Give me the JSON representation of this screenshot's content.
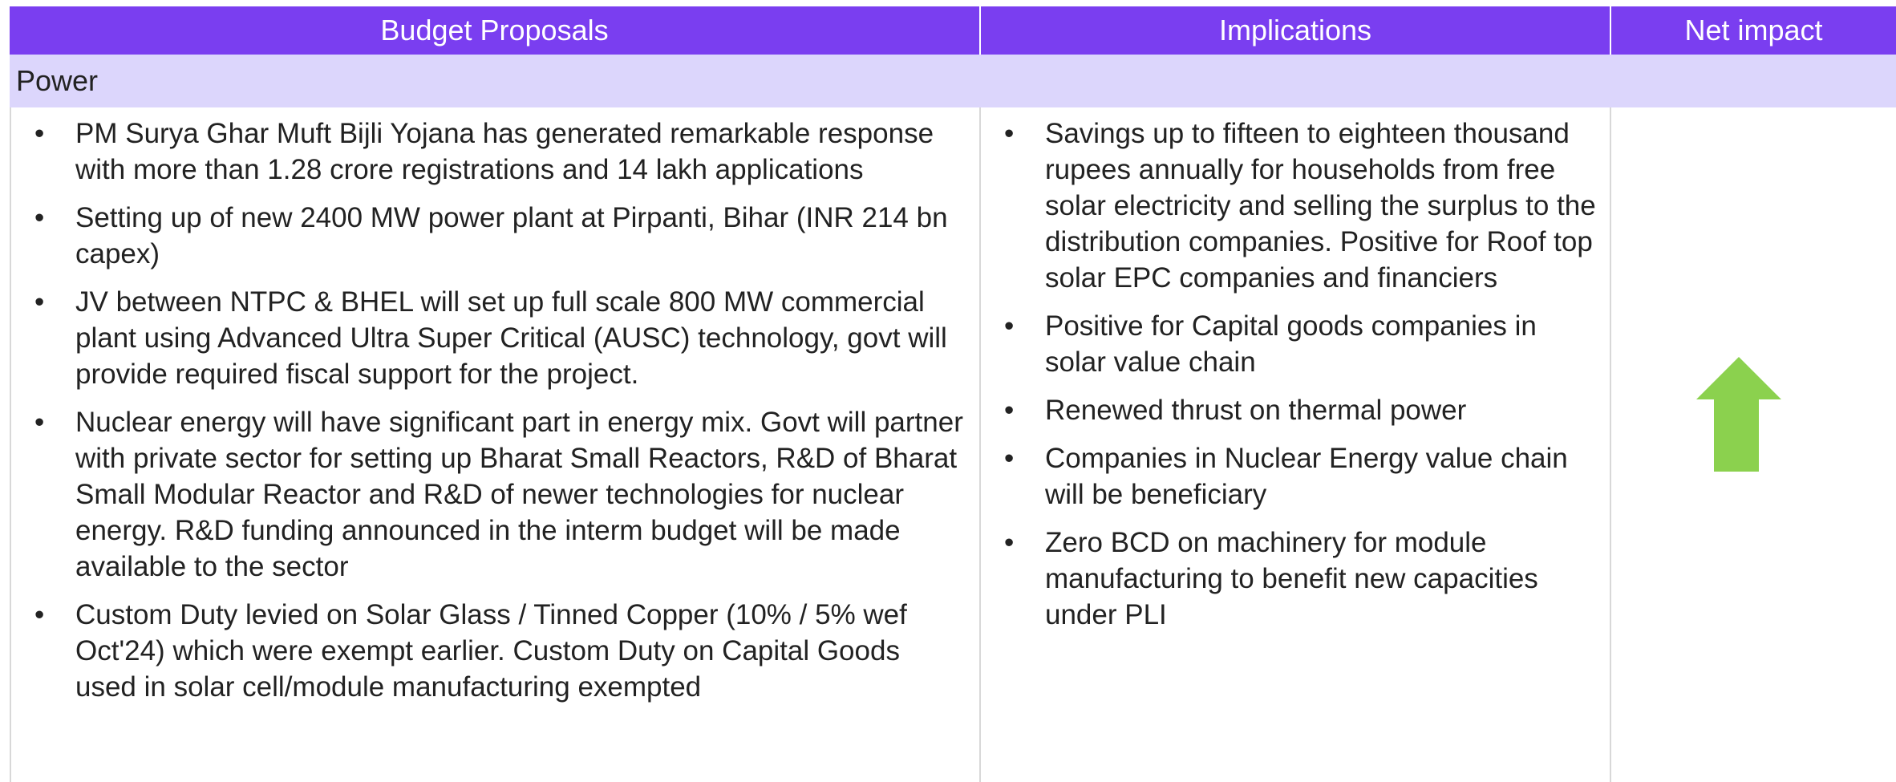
{
  "header": {
    "columns": [
      "Budget Proposals",
      "Implications",
      "Net impact"
    ]
  },
  "section": "Power",
  "proposals": [
    "PM Surya Ghar Muft Bijli Yojana has generated remarkable response with more than 1.28 crore registrations and 14 lakh applications",
    "Setting up of new 2400 MW power plant at Pirpanti, Bihar (INR 214 bn capex)",
    "JV between NTPC & BHEL will set up full scale 800 MW commercial plant using Advanced Ultra Super Critical (AUSC) technology, govt will provide required fiscal support for the project.",
    "Nuclear energy will have significant part in energy mix. Govt will partner with private sector for setting up Bharat Small Reactors, R&D of Bharat Small Modular Reactor and R&D of newer technologies for nuclear energy. R&D funding announced in the interm budget will be made available to the sector",
    "Custom Duty  levied on Solar Glass / Tinned Copper (10% / 5% wef Oct'24) which were exempt earlier. Custom Duty on Capital Goods used in solar cell/module manufacturing exempted"
  ],
  "implications": [
    "Savings up to fifteen to eighteen thousand rupees annually for households from free solar electricity and selling the surplus to the distribution companies. Positive for Roof top solar EPC companies and financiers",
    "Positive for Capital goods companies in solar value chain",
    "Renewed thrust on thermal power",
    "Companies in Nuclear Energy value chain will be beneficiary",
    "Zero BCD on machinery for module manufacturing to benefit new capacities under PLI"
  ]
}
